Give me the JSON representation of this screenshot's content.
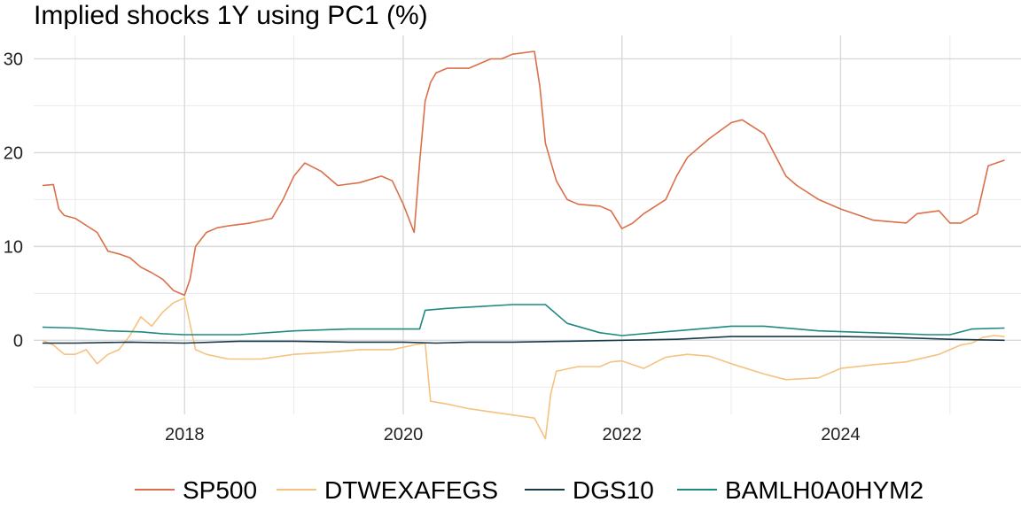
{
  "chart_data": {
    "type": "line",
    "title": "Implied shocks 1Y using PC1 (%)",
    "xlabel": "",
    "ylabel": "",
    "xlim": [
      2016.62,
      2025.65
    ],
    "ylim": [
      -7.9,
      32.5
    ],
    "x_ticks": [
      2018,
      2020,
      2022,
      2024
    ],
    "x_tick_labels": [
      "2018",
      "2020",
      "2022",
      "2024"
    ],
    "y_ticks": [
      0,
      10,
      20,
      30
    ],
    "y_tick_labels": [
      "0",
      "10",
      "20",
      "30"
    ],
    "grid": true,
    "legend_position": "bottom",
    "series": [
      {
        "name": "SP500",
        "color": "#d9704a",
        "x": [
          2016.7,
          2016.8,
          2016.85,
          2016.9,
          2017.0,
          2017.2,
          2017.3,
          2017.4,
          2017.5,
          2017.6,
          2017.7,
          2017.8,
          2017.9,
          2018.0,
          2018.05,
          2018.1,
          2018.2,
          2018.3,
          2018.4,
          2018.6,
          2018.8,
          2018.9,
          2019.0,
          2019.1,
          2019.25,
          2019.4,
          2019.6,
          2019.8,
          2019.9,
          2020.0,
          2020.1,
          2020.15,
          2020.2,
          2020.25,
          2020.3,
          2020.4,
          2020.6,
          2020.8,
          2020.9,
          2021.0,
          2021.2,
          2021.25,
          2021.3,
          2021.4,
          2021.5,
          2021.6,
          2021.8,
          2021.9,
          2022.0,
          2022.1,
          2022.2,
          2022.4,
          2022.5,
          2022.6,
          2022.8,
          2023.0,
          2023.1,
          2023.3,
          2023.5,
          2023.6,
          2023.8,
          2024.0,
          2024.3,
          2024.6,
          2024.7,
          2024.9,
          2025.0,
          2025.1,
          2025.25,
          2025.35,
          2025.5
        ],
        "y": [
          16.5,
          16.6,
          14.0,
          13.3,
          13.0,
          11.5,
          9.5,
          9.2,
          8.8,
          7.8,
          7.2,
          6.5,
          5.3,
          4.8,
          6.5,
          10.0,
          11.5,
          12.0,
          12.2,
          12.5,
          13.0,
          15.0,
          17.5,
          18.9,
          18.0,
          16.5,
          16.8,
          17.5,
          17.0,
          14.5,
          11.5,
          19.0,
          25.5,
          27.5,
          28.5,
          29.0,
          29.0,
          30.0,
          30.0,
          30.5,
          30.8,
          27.0,
          21.0,
          17.0,
          15.0,
          14.5,
          14.3,
          13.8,
          11.9,
          12.5,
          13.5,
          15.0,
          17.5,
          19.5,
          21.5,
          23.2,
          23.5,
          22.0,
          17.5,
          16.5,
          15.0,
          14.0,
          12.8,
          12.5,
          13.5,
          13.8,
          12.5,
          12.5,
          13.5,
          18.6,
          19.2
        ]
      },
      {
        "name": "DTWEXAFEGS",
        "color": "#f5c27f",
        "x": [
          2016.7,
          2016.8,
          2016.9,
          2017.0,
          2017.1,
          2017.2,
          2017.3,
          2017.4,
          2017.5,
          2017.6,
          2017.7,
          2017.8,
          2017.9,
          2018.0,
          2018.1,
          2018.2,
          2018.4,
          2018.7,
          2019.0,
          2019.3,
          2019.6,
          2019.9,
          2020.1,
          2020.2,
          2020.25,
          2020.4,
          2020.6,
          2020.9,
          2021.2,
          2021.3,
          2021.35,
          2021.4,
          2021.6,
          2021.8,
          2021.9,
          2022.0,
          2022.2,
          2022.4,
          2022.6,
          2022.8,
          2023.0,
          2023.3,
          2023.5,
          2023.8,
          2024.0,
          2024.3,
          2024.6,
          2024.9,
          2025.0,
          2025.1,
          2025.2,
          2025.3,
          2025.4,
          2025.5
        ],
        "y": [
          0.0,
          -0.5,
          -1.5,
          -1.5,
          -1.0,
          -2.5,
          -1.5,
          -1.0,
          0.5,
          2.5,
          1.5,
          3.0,
          4.0,
          4.5,
          -1.0,
          -1.5,
          -2.0,
          -2.0,
          -1.5,
          -1.3,
          -1.0,
          -1.0,
          -0.5,
          -0.3,
          -6.5,
          -6.8,
          -7.3,
          -7.8,
          -8.3,
          -10.5,
          -5.7,
          -3.3,
          -2.8,
          -2.8,
          -2.3,
          -2.2,
          -3.0,
          -1.8,
          -1.5,
          -1.7,
          -2.5,
          -3.6,
          -4.2,
          -4.0,
          -3.0,
          -2.6,
          -2.3,
          -1.5,
          -1.0,
          -0.5,
          -0.3,
          0.3,
          0.5,
          0.4
        ]
      },
      {
        "name": "DGS10",
        "color": "#17394a",
        "x": [
          2016.7,
          2017.0,
          2017.5,
          2018.0,
          2018.5,
          2019.0,
          2019.5,
          2020.0,
          2020.3,
          2020.6,
          2021.0,
          2021.5,
          2022.0,
          2022.5,
          2023.0,
          2023.5,
          2024.0,
          2024.5,
          2025.0,
          2025.5
        ],
        "y": [
          -0.3,
          -0.3,
          -0.2,
          -0.3,
          -0.1,
          -0.1,
          -0.2,
          -0.2,
          -0.3,
          -0.2,
          -0.2,
          -0.1,
          0.0,
          0.1,
          0.4,
          0.4,
          0.4,
          0.3,
          0.1,
          0.0
        ]
      },
      {
        "name": "BAMLH0A0HYM2",
        "color": "#1e8a80",
        "x": [
          2016.7,
          2017.0,
          2017.3,
          2017.6,
          2017.8,
          2018.0,
          2018.5,
          2019.0,
          2019.5,
          2020.0,
          2020.15,
          2020.2,
          2020.4,
          2020.7,
          2021.0,
          2021.3,
          2021.5,
          2021.8,
          2022.0,
          2022.5,
          2023.0,
          2023.3,
          2023.8,
          2024.3,
          2024.8,
          2025.0,
          2025.2,
          2025.5
        ],
        "y": [
          1.4,
          1.3,
          1.0,
          0.9,
          0.7,
          0.6,
          0.6,
          1.0,
          1.2,
          1.2,
          1.2,
          3.2,
          3.4,
          3.6,
          3.8,
          3.8,
          1.8,
          0.8,
          0.5,
          1.0,
          1.5,
          1.5,
          1.0,
          0.8,
          0.6,
          0.6,
          1.2,
          1.3
        ]
      }
    ]
  }
}
